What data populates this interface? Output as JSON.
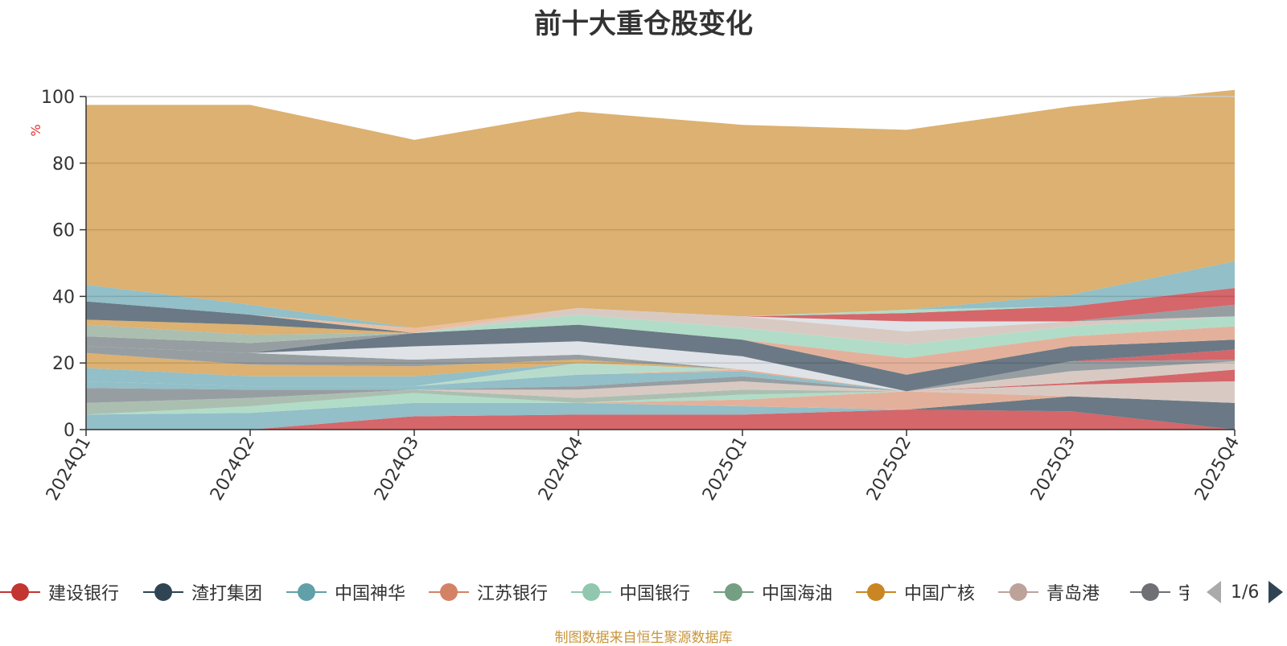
{
  "chart_data": {
    "type": "area",
    "title": "前十大重仓股变化",
    "ylabel": "%",
    "ylim": [
      0,
      100
    ],
    "y_ticks": [
      "0",
      "20",
      "40",
      "60",
      "80",
      "100"
    ],
    "categories": [
      "2024Q1",
      "2024Q2",
      "2024Q3",
      "2024Q4",
      "2025Q1",
      "2025Q2",
      "2025Q3",
      "2025Q4"
    ],
    "grid": true,
    "legend_position": "bottom",
    "layers": [
      {
        "color": "#d0555a",
        "values": [
          0,
          0,
          4.0,
          4.5,
          4.5,
          6.0,
          5.5,
          0
        ]
      },
      {
        "color": "#5a6a78",
        "values": [
          0,
          0,
          0,
          0,
          0,
          0,
          4.5,
          8.0
        ]
      },
      {
        "color": "#86b8c2",
        "values": [
          4.5,
          5.0,
          4.0,
          3.5,
          2.5,
          0,
          0,
          0
        ]
      },
      {
        "color": "#e0a890",
        "values": [
          0,
          0,
          0,
          0,
          2.0,
          5.5,
          0,
          0
        ]
      },
      {
        "color": "#a8d8c2",
        "values": [
          0,
          2.0,
          3.0,
          0,
          1.5,
          0,
          0,
          0
        ]
      },
      {
        "color": "#a2b8a8",
        "values": [
          3.5,
          2.5,
          1.0,
          1.5,
          1.5,
          0,
          0,
          0
        ]
      },
      {
        "color": "#d4c4bc",
        "values": [
          0,
          0,
          0,
          2.5,
          2.5,
          0,
          3.5,
          6.5
        ]
      },
      {
        "color": "#8c9398",
        "values": [
          4.5,
          2.5,
          0,
          1.0,
          1.5,
          0,
          0,
          0
        ]
      },
      {
        "color": "#86b8c2",
        "values": [
          2.0,
          1.0,
          1.0,
          3.5,
          1.5,
          0,
          0,
          0
        ]
      },
      {
        "color": "#d0555a",
        "values": [
          0,
          0,
          0,
          0,
          0,
          0,
          0.5,
          3.5
        ]
      },
      {
        "color": "#e8a488",
        "values": [
          0,
          0,
          0,
          0,
          0.5,
          0,
          0,
          0
        ]
      },
      {
        "color": "#b0d8c6",
        "values": [
          0,
          0,
          0,
          3.5,
          0,
          0,
          0,
          0
        ]
      },
      {
        "color": "#d4c4bc",
        "values": [
          0,
          0,
          0,
          0,
          0,
          0,
          3.5,
          2.5
        ]
      },
      {
        "color": "#8c9398",
        "values": [
          0,
          0,
          0,
          0,
          0,
          0,
          3.0,
          0.5
        ]
      },
      {
        "color": "#d0555a",
        "values": [
          0,
          0,
          0,
          0,
          0,
          0,
          0,
          3.0
        ]
      },
      {
        "color": "#86b8c2",
        "values": [
          4.0,
          3.0,
          3.0,
          0,
          0,
          0,
          0,
          0
        ]
      },
      {
        "color": "#d8a862",
        "values": [
          4.5,
          3.5,
          3.0,
          1.0,
          0,
          0,
          0,
          0
        ]
      },
      {
        "color": "#8c9398",
        "values": [
          2.0,
          3.5,
          2.0,
          1.5,
          0,
          0,
          0,
          0
        ]
      },
      {
        "color": "#dce0e4",
        "values": [
          0,
          0,
          4.0,
          4.0,
          4.0,
          0,
          0,
          0
        ]
      },
      {
        "color": "#5a6a78",
        "values": [
          0,
          0,
          4.0,
          5.0,
          5.0,
          5.0,
          4.5,
          3.0
        ]
      },
      {
        "color": "#e0a890",
        "values": [
          0,
          0,
          0,
          0,
          0,
          5.0,
          3.0,
          4.0
        ]
      },
      {
        "color": "#a8d8c2",
        "values": [
          0,
          0,
          0,
          3.0,
          3.5,
          4.0,
          3.0,
          3.0
        ]
      },
      {
        "color": "#8c9398",
        "values": [
          3.0,
          3.0,
          0,
          0,
          0,
          0,
          0,
          0
        ]
      },
      {
        "color": "#a2b8a8",
        "values": [
          3.5,
          2.5,
          0,
          0,
          0,
          0,
          0,
          0
        ]
      },
      {
        "color": "#d4c4bc",
        "values": [
          0,
          0,
          0,
          2.0,
          3.5,
          4.0,
          1.5,
          0
        ]
      },
      {
        "color": "#d8a862",
        "values": [
          1.5,
          3.0,
          0,
          0,
          0,
          0,
          0,
          0
        ]
      },
      {
        "color": "#dce0e4",
        "values": [
          0,
          0,
          0,
          0,
          0,
          3.0,
          0,
          0
        ]
      },
      {
        "color": "#8c9398",
        "values": [
          0,
          0,
          0,
          0,
          0,
          0,
          0,
          3.5
        ]
      },
      {
        "color": "#d0555a",
        "values": [
          0,
          0,
          0,
          0,
          0,
          2.5,
          4.5,
          5.0
        ]
      },
      {
        "color": "#5a6a78",
        "values": [
          5.5,
          3.0,
          0,
          0,
          0,
          0,
          0,
          0
        ]
      },
      {
        "color": "#e8b896",
        "values": [
          0,
          0,
          1.5,
          0,
          0,
          0,
          0,
          0
        ]
      },
      {
        "color": "#a8d8c2",
        "values": [
          0,
          0,
          0,
          0,
          0,
          1.0,
          0,
          0
        ]
      },
      {
        "color": "#86b8c2",
        "values": [
          5.0,
          3.0,
          0,
          0,
          0,
          0,
          3.5,
          8.0
        ]
      },
      {
        "color": "#d8a862",
        "values": [
          54.0,
          60.0,
          56.5,
          59.0,
          57.5,
          54.0,
          56.5,
          51.5
        ]
      }
    ],
    "legend": [
      {
        "name": "建设银行",
        "color": "#c23531"
      },
      {
        "name": "渣打集团",
        "color": "#2f4554"
      },
      {
        "name": "中国神华",
        "color": "#61a0a8"
      },
      {
        "name": "江苏银行",
        "color": "#d48265"
      },
      {
        "name": "中国银行",
        "color": "#91c7ae"
      },
      {
        "name": "中国海油",
        "color": "#749f83"
      },
      {
        "name": "中国广核",
        "color": "#ca8622"
      },
      {
        "name": "青岛港",
        "color": "#bda29a"
      },
      {
        "name": "宇通客车",
        "color": "#6e7074"
      }
    ],
    "legend_page": "1/6"
  },
  "source_note": "制图数据来自恒生聚源数据库"
}
